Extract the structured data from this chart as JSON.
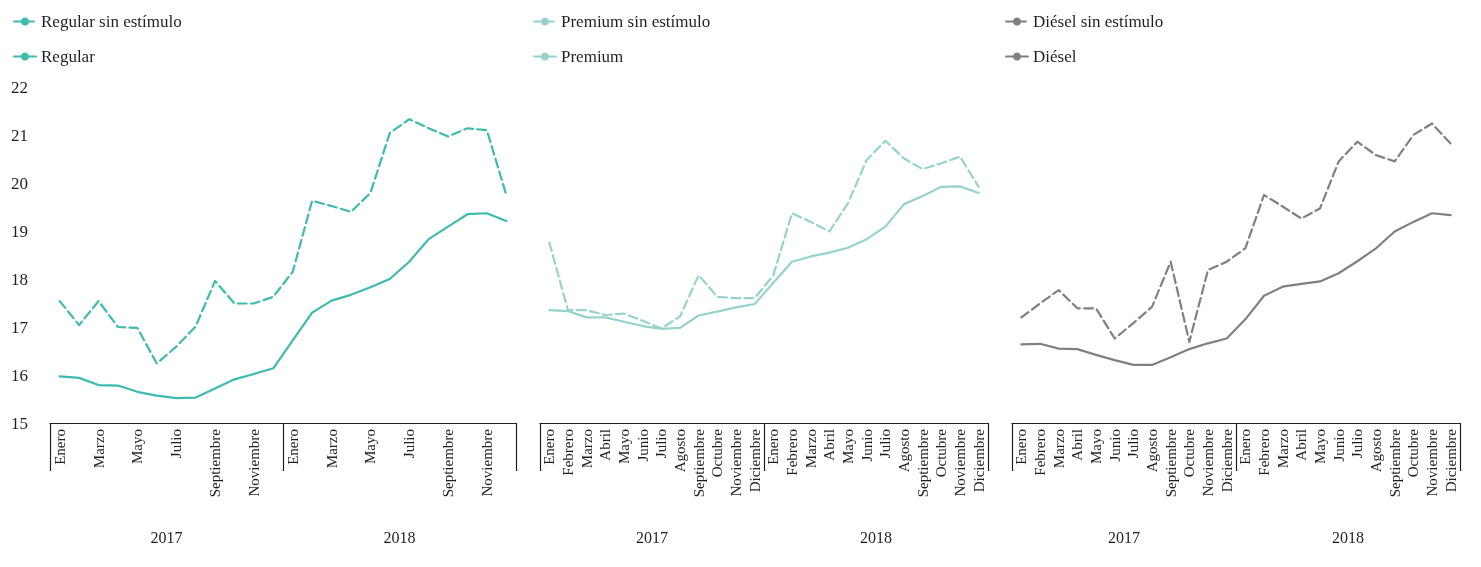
{
  "chart_data": [
    {
      "type": "line",
      "categories": [
        "Enero",
        null,
        "Marzo",
        null,
        "Mayo",
        null,
        "Julio",
        null,
        "Septiembre",
        null,
        "Noviembre",
        null,
        "Enero",
        null,
        "Marzo",
        null,
        "Mayo",
        null,
        "Julio",
        null,
        "Septiembre",
        null,
        "Noviembre",
        null
      ],
      "series": [
        {
          "name": "Regular sin estímulo",
          "color": "#3dbbad",
          "line_style": "dashed",
          "values": [
            17.54,
            17.04,
            17.54,
            17.0,
            16.98,
            16.24,
            16.59,
            17.01,
            17.96,
            17.49,
            17.49,
            17.63,
            18.15,
            19.63,
            19.52,
            19.4,
            19.79,
            21.04,
            21.33,
            21.14,
            20.97,
            21.14,
            21.1,
            19.75
          ]
        },
        {
          "name": "Regular",
          "color": "#3dbbad",
          "line_style": "solid",
          "values": [
            15.97,
            15.94,
            15.79,
            15.78,
            15.65,
            15.57,
            15.52,
            15.53,
            15.72,
            15.91,
            16.02,
            16.14,
            16.72,
            17.3,
            17.55,
            17.67,
            17.83,
            18.0,
            18.36,
            18.83,
            19.09,
            19.35,
            19.37,
            19.21
          ]
        }
      ],
      "ylim": [
        15,
        22
      ],
      "yticks": [
        15,
        16,
        17,
        18,
        19,
        20,
        21,
        22
      ],
      "grid": false,
      "legend": "top left",
      "marker": "none",
      "annotations": [
        "2017",
        "2018"
      ]
    },
    {
      "type": "line",
      "categories": [
        "Enero",
        "Febrero",
        "Marzo",
        "Abril",
        "Mayo",
        "Junio",
        "Julio",
        "Agosto",
        "Septiembre",
        "Octubre",
        "Noviembre",
        "Diciembre",
        "Enero",
        "Febrero",
        "Marzo",
        "Abril",
        "Mayo",
        "Junio",
        "Julio",
        "Agosto",
        "Septiembre",
        "Octubre",
        "Noviembre",
        "Diciembre"
      ],
      "series": [
        {
          "name": "Premium sin estímulo",
          "color": "#96d3cc",
          "line_style": "dashed",
          "values": [
            18.76,
            17.35,
            17.35,
            17.25,
            17.28,
            17.13,
            16.97,
            17.22,
            18.08,
            17.63,
            17.6,
            17.6,
            18.08,
            19.37,
            19.19,
            18.99,
            19.58,
            20.48,
            20.88,
            20.51,
            20.29,
            20.41,
            20.55,
            19.92
          ]
        },
        {
          "name": "Premium",
          "color": "#96d3cc",
          "line_style": "solid",
          "values": [
            17.35,
            17.33,
            17.2,
            17.2,
            17.11,
            17.02,
            16.96,
            16.98,
            17.24,
            17.32,
            17.41,
            17.48,
            17.92,
            18.36,
            18.47,
            18.55,
            18.65,
            18.83,
            19.09,
            19.56,
            19.73,
            19.92,
            19.93,
            19.79
          ]
        }
      ],
      "ylim": [
        15,
        22
      ],
      "yticks": [
        15,
        16,
        17,
        18,
        19,
        20,
        21,
        22
      ],
      "tick_labels": "x",
      "grid": false,
      "legend": "top left",
      "marker": "none",
      "annotations": [
        "2017",
        "2018"
      ]
    },
    {
      "type": "line",
      "categories": [
        "Enero",
        "Febrero",
        "Marzo",
        "Abril",
        "Mayo",
        "Junio",
        "Julio",
        "Agosto",
        "Septiembre",
        "Octubre",
        "Noviembre",
        "Diciembre",
        "Enero",
        "Febrero",
        "Marzo",
        "Abril",
        "Mayo",
        "Junio",
        "Julio",
        "Agosto",
        "Septiembre",
        "Octubre",
        "Noviembre",
        "Diciembre"
      ],
      "series": [
        {
          "name": "Diésel sin estímulo",
          "color": "#808080",
          "line_style": "dashed",
          "values": [
            17.2,
            17.49,
            17.77,
            17.39,
            17.39,
            16.76,
            17.08,
            17.42,
            18.36,
            16.69,
            18.19,
            18.36,
            18.64,
            19.75,
            19.51,
            19.26,
            19.47,
            20.45,
            20.86,
            20.58,
            20.45,
            21.0,
            21.24,
            20.82
          ]
        },
        {
          "name": "Diésel",
          "color": "#808080",
          "line_style": "solid",
          "values": [
            16.64,
            16.65,
            16.55,
            16.54,
            16.42,
            16.31,
            16.21,
            16.21,
            16.37,
            16.54,
            16.66,
            16.76,
            17.16,
            17.65,
            17.84,
            17.9,
            17.95,
            18.12,
            18.37,
            18.64,
            18.99,
            19.19,
            19.37,
            19.33
          ]
        }
      ],
      "ylim": [
        15,
        22
      ],
      "yticks": [
        15,
        16,
        17,
        18,
        19,
        20,
        21,
        22
      ],
      "tick_labels": "x",
      "grid": false,
      "legend": "top left",
      "marker": "none",
      "annotations": [
        "2017",
        "2018"
      ]
    }
  ]
}
